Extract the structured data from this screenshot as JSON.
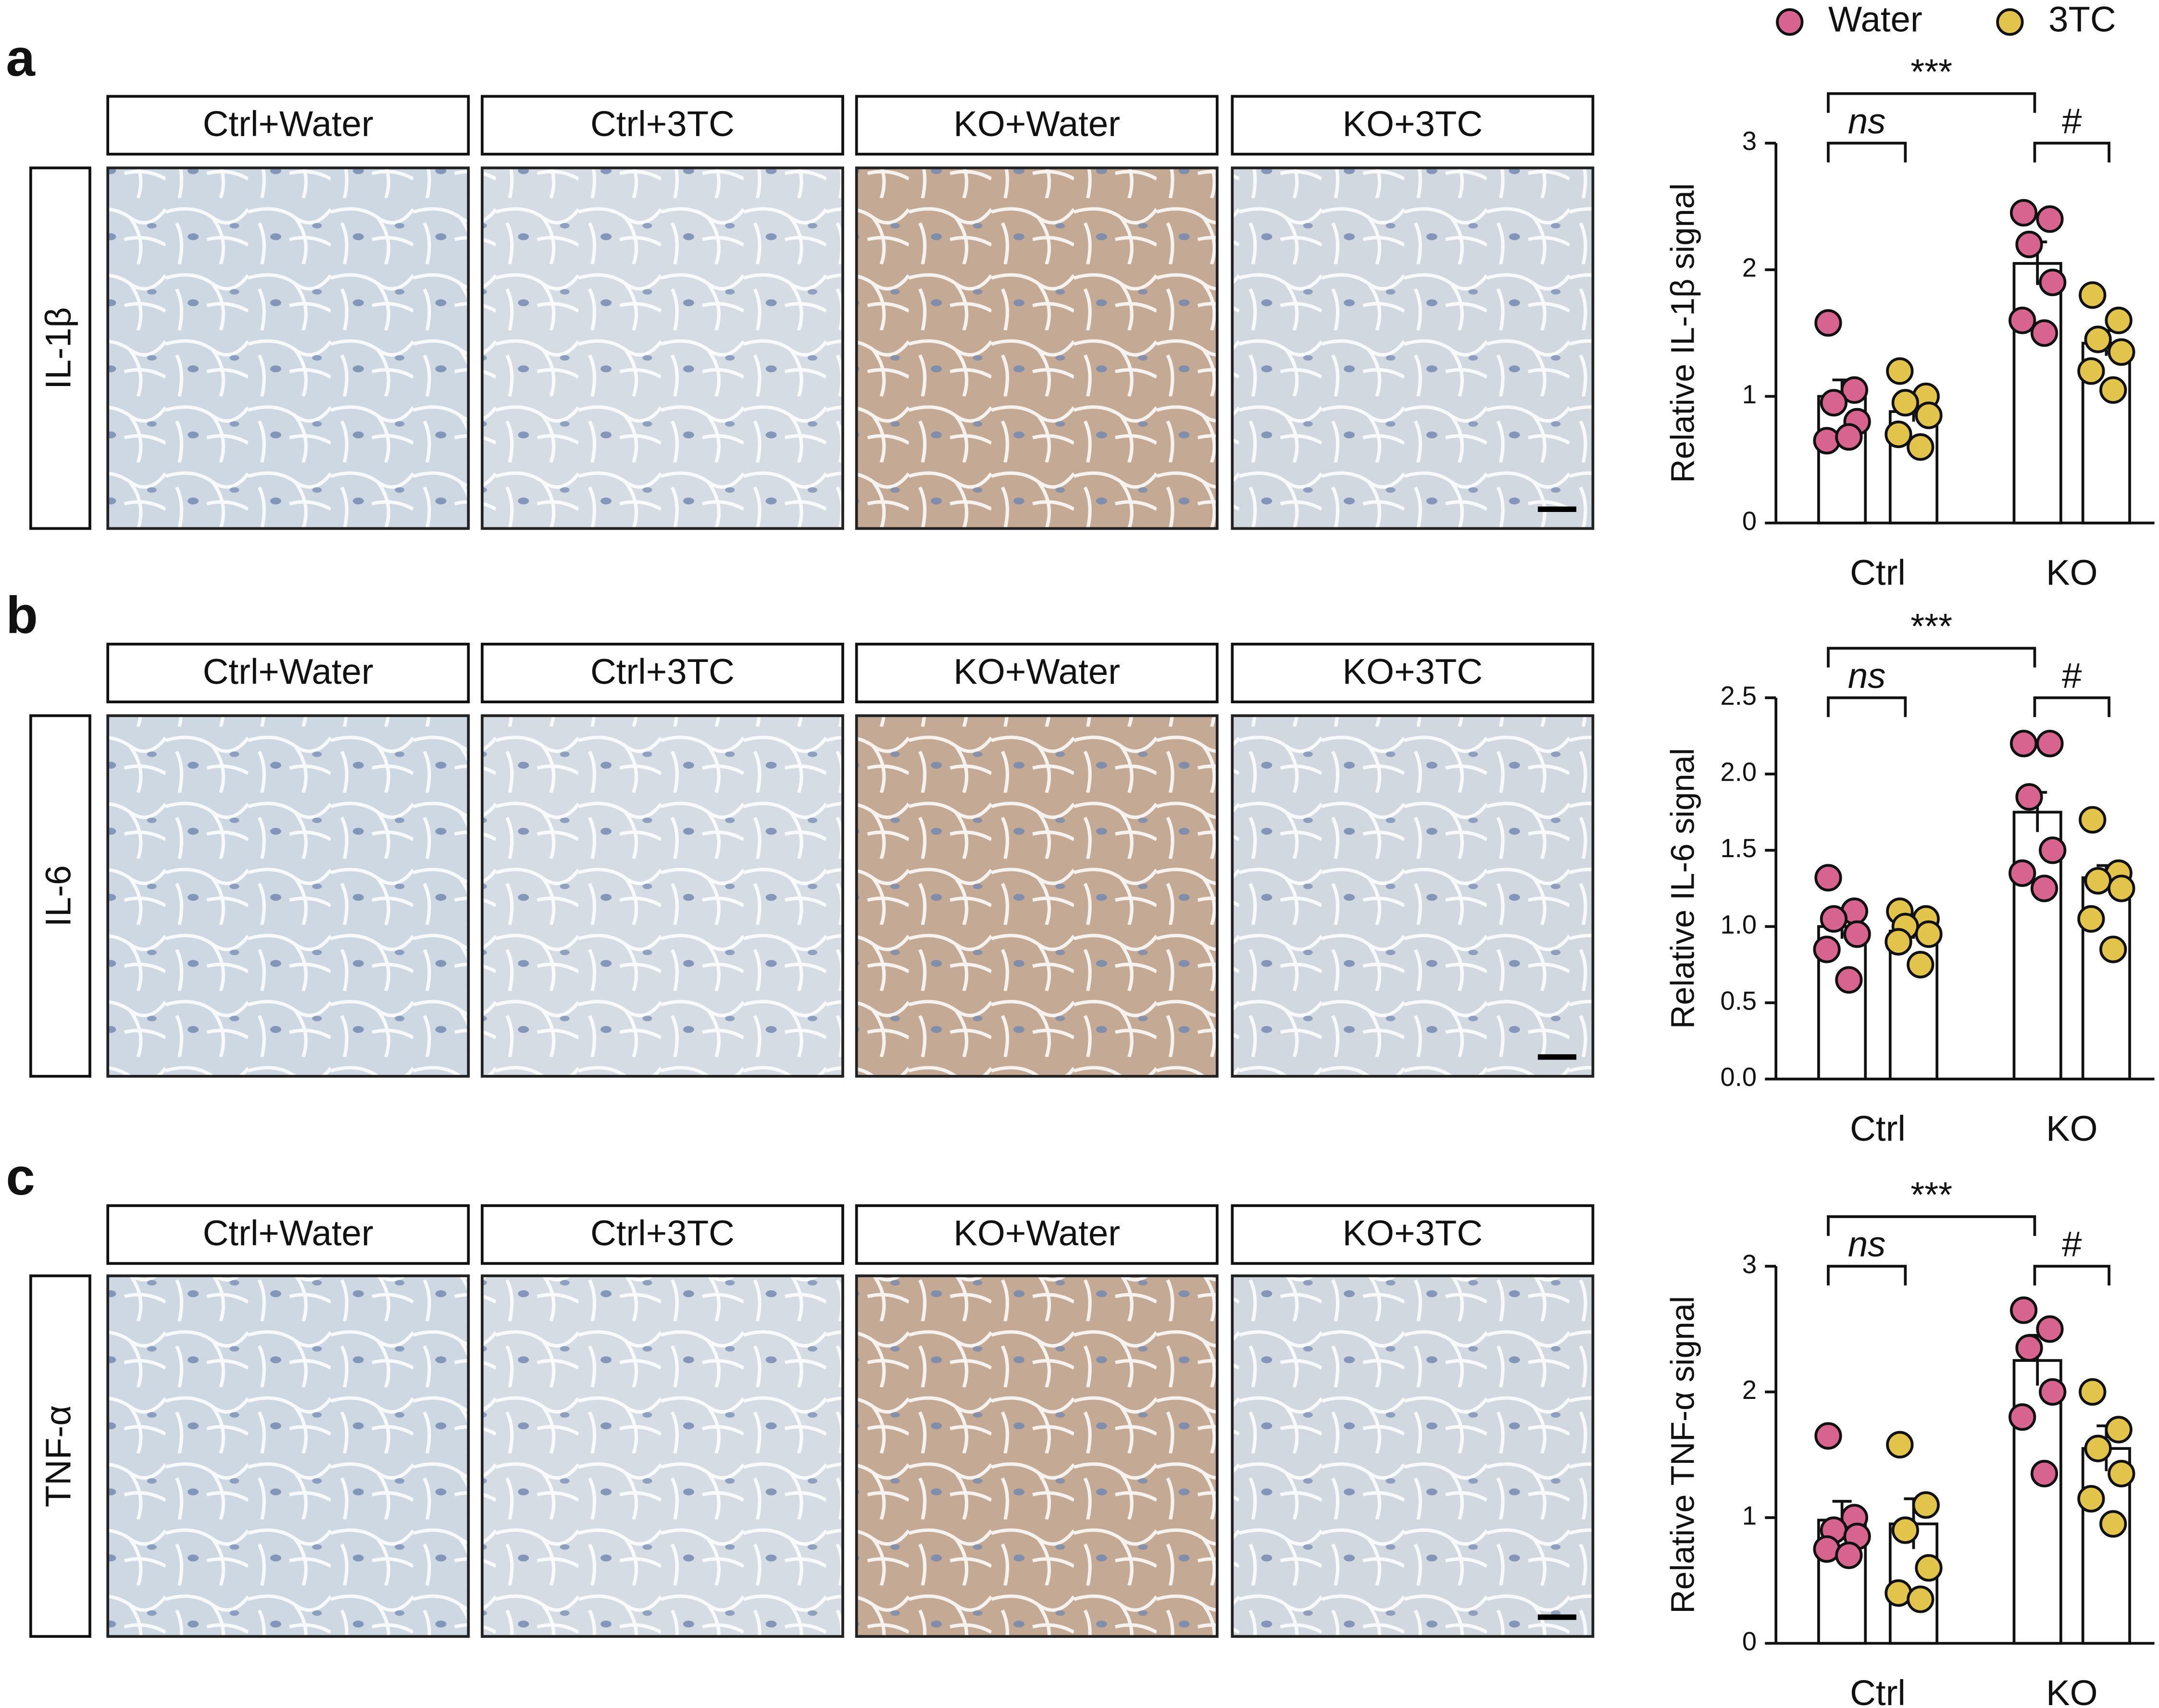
{
  "figure": {
    "panels": [
      {
        "letter": "a",
        "stain": "IL-1β",
        "columns": [
          "Ctrl+Water",
          "Ctrl+3TC",
          "KO+Water",
          "KO+3TC"
        ]
      },
      {
        "letter": "b",
        "stain": "IL-6",
        "columns": [
          "Ctrl+Water",
          "Ctrl+3TC",
          "KO+Water",
          "KO+3TC"
        ]
      },
      {
        "letter": "c",
        "stain": "TNF-α",
        "columns": [
          "Ctrl+Water",
          "Ctrl+3TC",
          "KO+Water",
          "KO+3TC"
        ]
      }
    ]
  },
  "chart_data": [
    {
      "type": "bar",
      "ylabel": "Relative IL-1β signal",
      "categories": [
        "Ctrl",
        "KO"
      ],
      "legend": "top",
      "series": [
        {
          "name": "Water",
          "color": "#d6648e",
          "values": [
            1.0,
            2.05
          ],
          "errors": [
            0.13,
            0.17
          ],
          "points": [
            [
              1.58,
              1.05,
              0.95,
              0.8,
              0.65,
              0.68
            ],
            [
              2.45,
              2.4,
              2.2,
              1.9,
              1.6,
              1.5
            ]
          ]
        },
        {
          "name": "3TC",
          "color": "#e2c44c",
          "values": [
            0.88,
            1.42
          ],
          "errors": [
            0.08,
            0.1
          ],
          "points": [
            [
              1.2,
              1.0,
              0.95,
              0.85,
              0.7,
              0.6
            ],
            [
              1.8,
              1.6,
              1.45,
              1.35,
              1.2,
              1.05
            ]
          ]
        }
      ],
      "ylim": [
        0,
        3
      ],
      "yticks": [
        0,
        1,
        2,
        3
      ],
      "annotations": [
        "***",
        "ns",
        "#"
      ]
    },
    {
      "type": "bar",
      "ylabel": "Relative IL-6 signal",
      "categories": [
        "Ctrl",
        "KO"
      ],
      "series": [
        {
          "name": "Water",
          "color": "#d6648e",
          "values": [
            1.0,
            1.75
          ],
          "errors": [
            0.08,
            0.13
          ],
          "points": [
            [
              1.32,
              1.1,
              1.05,
              0.95,
              0.85,
              0.65
            ],
            [
              2.2,
              2.2,
              1.85,
              1.5,
              1.35,
              1.25
            ]
          ]
        },
        {
          "name": "3TC",
          "color": "#e2c44c",
          "values": [
            0.97,
            1.32
          ],
          "errors": [
            0.05,
            0.08
          ],
          "points": [
            [
              1.1,
              1.05,
              1.0,
              0.95,
              0.9,
              0.75
            ],
            [
              1.7,
              1.35,
              1.3,
              1.25,
              1.05,
              0.85
            ]
          ]
        }
      ],
      "ylim": [
        0,
        2.5
      ],
      "yticks": [
        {
          "value": 0,
          "label": "0.0"
        },
        0.5,
        {
          "value": 1,
          "label": "1.0"
        },
        1.5,
        {
          "value": 2,
          "label": "2.0"
        },
        2.5
      ],
      "annotations": [
        "***",
        "ns",
        "#"
      ]
    },
    {
      "type": "bar",
      "ylabel": "Relative TNF-α signal",
      "categories": [
        "Ctrl",
        "KO"
      ],
      "series": [
        {
          "name": "Water",
          "color": "#d6648e",
          "values": [
            0.98,
            2.25
          ],
          "errors": [
            0.15,
            0.2
          ],
          "points": [
            [
              1.65,
              1.0,
              0.9,
              0.85,
              0.75,
              0.7
            ],
            [
              2.65,
              2.5,
              2.35,
              2.0,
              1.8,
              1.35
            ]
          ]
        },
        {
          "name": "3TC",
          "color": "#e2c44c",
          "values": [
            0.95,
            1.55
          ],
          "errors": [
            0.2,
            0.18
          ],
          "points": [
            [
              1.58,
              1.1,
              0.9,
              0.6,
              0.4,
              0.35
            ],
            [
              2.0,
              1.7,
              1.55,
              1.35,
              1.15,
              0.95
            ]
          ]
        }
      ],
      "ylim": [
        0,
        3
      ],
      "yticks": [
        0,
        1,
        2,
        3
      ],
      "annotations": [
        "***",
        "ns",
        "#"
      ]
    }
  ]
}
